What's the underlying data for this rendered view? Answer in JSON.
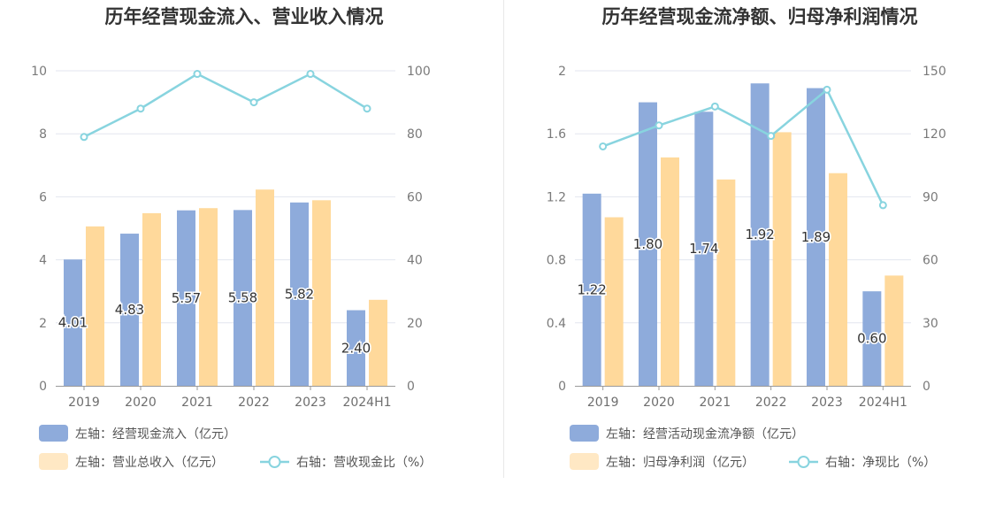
{
  "colors": {
    "bar_primary": "#8eabdb",
    "bar_secondary": "#ffd99b",
    "legend_secondary": "#ffe8c4",
    "line": "#88d4df",
    "grid": "#e3e6ef",
    "axis": "#9a9a9a"
  },
  "chart_data": [
    {
      "type": "bar",
      "title": "历年经营现金流入、营业收入情况",
      "categories": [
        "2019",
        "2020",
        "2021",
        "2022",
        "2023",
        "2024H1"
      ],
      "left_axis": {
        "ylim": [
          0,
          10
        ],
        "ticks": [
          "0",
          "2",
          "4",
          "6",
          "8",
          "10"
        ]
      },
      "right_axis": {
        "ylim": [
          0,
          100
        ],
        "ticks": [
          "0",
          "20",
          "40",
          "60",
          "80",
          "100"
        ]
      },
      "grid": true,
      "legend_position": "bottom-left",
      "series": [
        {
          "name": "左轴：经营现金流入（亿元）",
          "kind": "bar",
          "axis": "left",
          "values": [
            4.01,
            4.83,
            5.57,
            5.58,
            5.82,
            2.4
          ],
          "labels": [
            "4.01",
            "4.83",
            "5.57",
            "5.58",
            "5.82",
            "2.40"
          ]
        },
        {
          "name": "左轴：营业总收入（亿元）",
          "kind": "bar",
          "axis": "left",
          "values": [
            5.06,
            5.48,
            5.64,
            6.23,
            5.89,
            2.73
          ]
        },
        {
          "name": "右轴：营收现金比（%）",
          "kind": "line",
          "axis": "right",
          "values": [
            79,
            88,
            99,
            90,
            99,
            88
          ]
        }
      ]
    },
    {
      "type": "bar",
      "title": "历年经营现金流净额、归母净利润情况",
      "categories": [
        "2019",
        "2020",
        "2021",
        "2022",
        "2023",
        "2024H1"
      ],
      "left_axis": {
        "ylim": [
          0,
          2
        ],
        "ticks": [
          "0",
          "0.4",
          "0.8",
          "1.2",
          "1.6",
          "2"
        ]
      },
      "right_axis": {
        "ylim": [
          0,
          150
        ],
        "ticks": [
          "0",
          "30",
          "60",
          "90",
          "120",
          "150"
        ]
      },
      "grid": true,
      "legend_position": "bottom-left",
      "series": [
        {
          "name": "左轴：经营活动现金流净额（亿元）",
          "kind": "bar",
          "axis": "left",
          "values": [
            1.22,
            1.8,
            1.74,
            1.92,
            1.89,
            0.6
          ],
          "labels": [
            "1.22",
            "1.80",
            "1.74",
            "1.92",
            "1.89",
            "0.60"
          ]
        },
        {
          "name": "左轴：归母净利润（亿元）",
          "kind": "bar",
          "axis": "left",
          "values": [
            1.07,
            1.45,
            1.31,
            1.61,
            1.35,
            0.7
          ]
        },
        {
          "name": "右轴：净现比（%）",
          "kind": "line",
          "axis": "right",
          "values": [
            114,
            124,
            133,
            119,
            141,
            86
          ]
        }
      ]
    }
  ]
}
